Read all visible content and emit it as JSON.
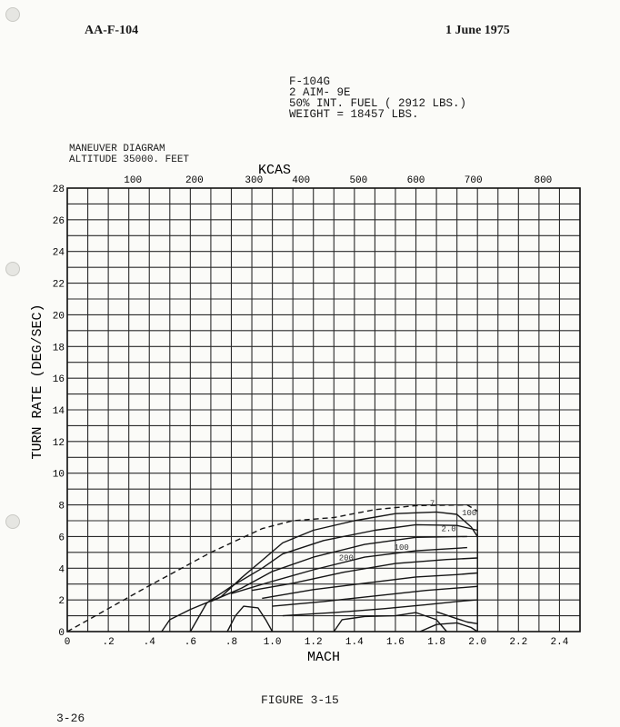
{
  "header": {
    "doc_id": "AA-F-104",
    "date": "1 June 1975"
  },
  "config": {
    "lines": [
      "F-104G",
      "2 AIM- 9E",
      "50% INT. FUEL ( 2912 LBS.)",
      "WEIGHT = 18457 LBS."
    ]
  },
  "diagram_title": {
    "line1": "MANEUVER DIAGRAM",
    "line2": "ALTITUDE  35000.  FEET"
  },
  "figure_caption": "FIGURE 3-15",
  "page_number": "3-26",
  "chart_data": {
    "type": "line",
    "title": "MANEUVER DIAGRAM",
    "subtitle": "ALTITUDE  35000.  FEET",
    "xlabel": "MACH",
    "ylabel": "TURN RATE (DEG/SEC)",
    "x2label": "KCAS",
    "xlim": [
      0,
      2.5
    ],
    "ylim": [
      0,
      28
    ],
    "grid": true,
    "x_ticks": [
      {
        "v": 0,
        "label": "0"
      },
      {
        "v": 0.2,
        "label": ".2"
      },
      {
        "v": 0.4,
        "label": ".4"
      },
      {
        "v": 0.6,
        "label": ".6"
      },
      {
        "v": 0.8,
        "label": ".8"
      },
      {
        "v": 1.0,
        "label": "1.0"
      },
      {
        "v": 1.2,
        "label": "1.2"
      },
      {
        "v": 1.4,
        "label": "1.4"
      },
      {
        "v": 1.6,
        "label": "1.6"
      },
      {
        "v": 1.8,
        "label": "1.8"
      },
      {
        "v": 2.0,
        "label": "2.0"
      },
      {
        "v": 2.2,
        "label": "2.2"
      },
      {
        "v": 2.4,
        "label": "2.4"
      }
    ],
    "y_ticks": [
      {
        "v": 0,
        "label": "0"
      },
      {
        "v": 2,
        "label": "2"
      },
      {
        "v": 4,
        "label": "4"
      },
      {
        "v": 6,
        "label": "6"
      },
      {
        "v": 8,
        "label": "8"
      },
      {
        "v": 10,
        "label": "10"
      },
      {
        "v": 12,
        "label": "12"
      },
      {
        "v": 14,
        "label": "14"
      },
      {
        "v": 16,
        "label": "16"
      },
      {
        "v": 18,
        "label": "18"
      },
      {
        "v": 20,
        "label": "20"
      },
      {
        "v": 22,
        "label": "22"
      },
      {
        "v": 24,
        "label": "24"
      },
      {
        "v": 26,
        "label": "26"
      },
      {
        "v": 28,
        "label": "28"
      }
    ],
    "kcas_ticks": [
      {
        "mach": 0.32,
        "label": "100"
      },
      {
        "mach": 0.62,
        "label": "200"
      },
      {
        "mach": 0.91,
        "label": "300"
      },
      {
        "mach": 1.14,
        "label": "400"
      },
      {
        "mach": 1.42,
        "label": "500"
      },
      {
        "mach": 1.7,
        "label": "600"
      },
      {
        "mach": 1.98,
        "label": "700"
      },
      {
        "mach": 2.32,
        "label": "800"
      }
    ],
    "series": [
      {
        "style": "dashed",
        "points": [
          [
            0.0,
            0.0
          ],
          [
            0.4,
            2.9
          ],
          [
            0.7,
            5.0
          ],
          [
            0.95,
            6.5
          ],
          [
            1.1,
            7.0
          ],
          [
            1.3,
            7.2
          ],
          [
            1.5,
            7.7
          ],
          [
            1.7,
            7.95
          ],
          [
            1.95,
            8.0
          ],
          [
            2.0,
            7.6
          ]
        ]
      },
      {
        "style": "solid",
        "points": [
          [
            0.46,
            0.0
          ],
          [
            0.5,
            0.75
          ],
          [
            0.6,
            1.4
          ],
          [
            0.75,
            2.2
          ],
          [
            0.85,
            3.4
          ],
          [
            0.95,
            4.5
          ],
          [
            1.05,
            5.6
          ],
          [
            1.2,
            6.4
          ],
          [
            1.4,
            7.0
          ],
          [
            1.6,
            7.45
          ],
          [
            1.8,
            7.55
          ],
          [
            1.9,
            7.4
          ],
          [
            1.97,
            6.6
          ],
          [
            2.0,
            6.0
          ]
        ]
      },
      {
        "style": "solid",
        "points": [
          [
            0.78,
            0.0
          ],
          [
            0.82,
            1.0
          ],
          [
            0.86,
            1.6
          ],
          [
            0.93,
            1.5
          ],
          [
            0.97,
            0.7
          ],
          [
            1.0,
            0.0
          ]
        ]
      },
      {
        "style": "solid",
        "points": [
          [
            0.6,
            0.0
          ],
          [
            0.68,
            1.8
          ],
          [
            0.8,
            2.85
          ],
          [
            0.95,
            4.0
          ],
          [
            1.05,
            4.9
          ],
          [
            1.25,
            5.75
          ],
          [
            1.5,
            6.4
          ],
          [
            1.7,
            6.75
          ],
          [
            1.9,
            6.7
          ],
          [
            2.0,
            6.4
          ]
        ]
      },
      {
        "style": "solid",
        "points": [
          [
            0.7,
            1.9
          ],
          [
            0.85,
            2.75
          ],
          [
            1.0,
            3.8
          ],
          [
            1.2,
            4.7
          ],
          [
            1.45,
            5.5
          ],
          [
            1.7,
            5.95
          ],
          [
            1.95,
            6.0
          ]
        ]
      },
      {
        "style": "solid",
        "points": [
          [
            0.8,
            2.4
          ],
          [
            0.98,
            3.1
          ],
          [
            1.2,
            3.9
          ],
          [
            1.45,
            4.7
          ],
          [
            1.7,
            5.1
          ],
          [
            1.95,
            5.3
          ]
        ]
      },
      {
        "style": "solid",
        "points": [
          [
            0.9,
            2.6
          ],
          [
            1.1,
            3.05
          ],
          [
            1.35,
            3.75
          ],
          [
            1.6,
            4.3
          ],
          [
            1.85,
            4.55
          ],
          [
            2.0,
            4.65
          ]
        ]
      },
      {
        "style": "solid",
        "points": [
          [
            0.95,
            2.1
          ],
          [
            1.2,
            2.65
          ],
          [
            1.45,
            3.05
          ],
          [
            1.7,
            3.45
          ],
          [
            1.9,
            3.6
          ],
          [
            2.0,
            3.7
          ]
        ]
      },
      {
        "style": "solid",
        "points": [
          [
            1.0,
            1.6
          ],
          [
            1.25,
            1.9
          ],
          [
            1.5,
            2.25
          ],
          [
            1.75,
            2.6
          ],
          [
            1.95,
            2.8
          ],
          [
            2.0,
            2.85
          ]
        ]
      },
      {
        "style": "solid",
        "points": [
          [
            1.05,
            1.0
          ],
          [
            1.3,
            1.2
          ],
          [
            1.55,
            1.45
          ],
          [
            1.75,
            1.7
          ],
          [
            1.9,
            1.9
          ],
          [
            2.0,
            2.0
          ]
        ]
      },
      {
        "style": "solid",
        "points": [
          [
            1.3,
            0.0
          ],
          [
            1.34,
            0.75
          ],
          [
            1.45,
            0.95
          ],
          [
            1.6,
            1.0
          ],
          [
            1.7,
            1.2
          ],
          [
            1.8,
            0.75
          ],
          [
            1.85,
            0.0
          ]
        ]
      },
      {
        "style": "solid",
        "points": [
          [
            1.72,
            0.0
          ],
          [
            1.8,
            0.45
          ],
          [
            1.9,
            0.55
          ],
          [
            1.97,
            0.25
          ],
          [
            2.0,
            0.0
          ]
        ]
      },
      {
        "style": "solid",
        "points": [
          [
            1.8,
            1.25
          ],
          [
            1.88,
            0.9
          ],
          [
            1.95,
            0.6
          ],
          [
            2.0,
            0.5
          ]
        ]
      },
      {
        "style": "solid",
        "points": [
          [
            2.0,
            0.0
          ],
          [
            2.0,
            7.0
          ]
        ]
      }
    ],
    "annotations": [
      {
        "x": 1.78,
        "y": 7.95,
        "label": "7"
      },
      {
        "x": 1.96,
        "y": 7.35,
        "label": "100"
      },
      {
        "x": 1.86,
        "y": 6.35,
        "label": "2.0"
      },
      {
        "x": 1.63,
        "y": 5.15,
        "label": "100"
      },
      {
        "x": 1.36,
        "y": 4.5,
        "label": "200"
      }
    ]
  }
}
